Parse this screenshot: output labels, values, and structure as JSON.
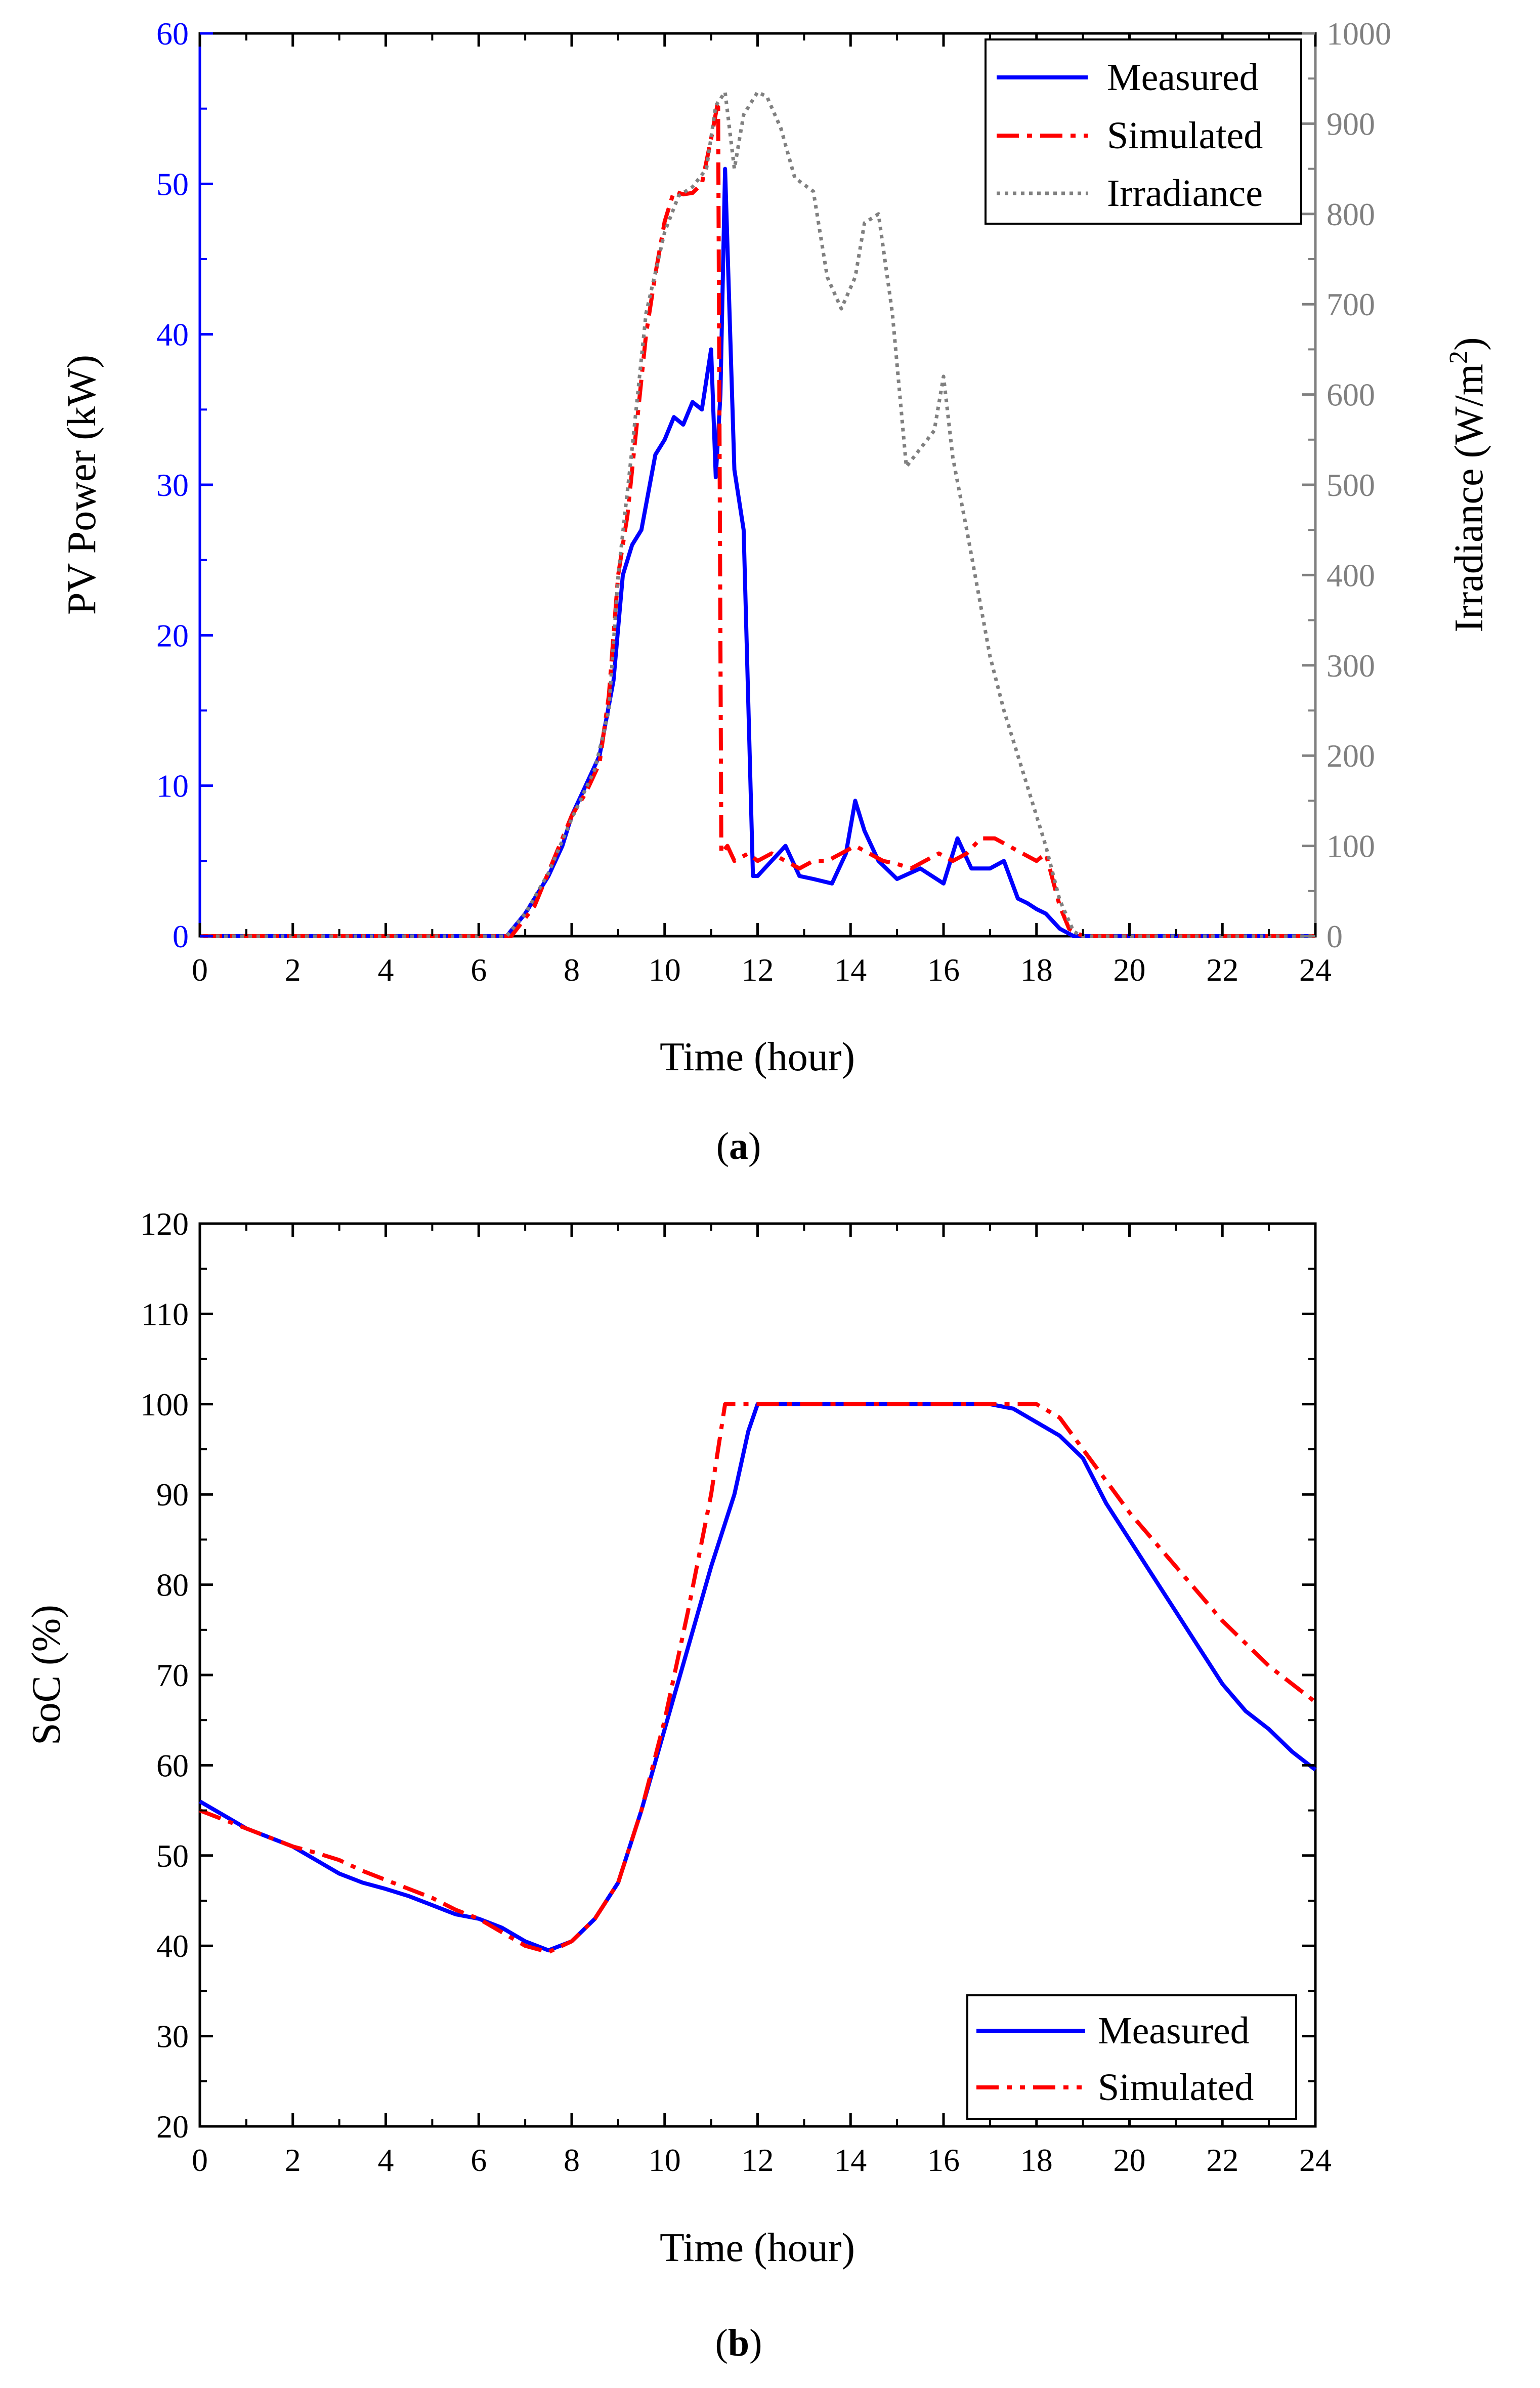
{
  "colors": {
    "measured": "#0000ff",
    "simulated": "#ff0000",
    "irradiance": "#808080",
    "left_axis_a": "#0000ff",
    "right_axis_a": "#808080",
    "axis": "#000000"
  },
  "chart_data": [
    {
      "type": "line",
      "title": "",
      "caption_open": "(",
      "caption_letter": "a",
      "caption_close": ")",
      "xlabel": "Time (hour)",
      "ylabel": "PV Power (kW)",
      "y2label_main": "Irradiance (W/m",
      "y2label_sup": "2",
      "y2label_close": ")",
      "xlim": [
        0,
        24
      ],
      "ylim": [
        0,
        60
      ],
      "y2lim": [
        0,
        1000
      ],
      "x_ticks": [
        0,
        2,
        4,
        6,
        8,
        10,
        12,
        14,
        16,
        18,
        20,
        22,
        24
      ],
      "x_tick_labels": [
        "0",
        "2",
        "4",
        "6",
        "8",
        "10",
        "12",
        "14",
        "16",
        "18",
        "20",
        "22",
        "24"
      ],
      "y_ticks": [
        0,
        10,
        20,
        30,
        40,
        50,
        60
      ],
      "y_tick_labels": [
        "0",
        "10",
        "20",
        "30",
        "40",
        "50",
        "60"
      ],
      "y2_ticks": [
        0,
        100,
        200,
        300,
        400,
        500,
        600,
        700,
        800,
        900,
        1000
      ],
      "y2_tick_labels": [
        "0",
        "100",
        "200",
        "300",
        "400",
        "500",
        "600",
        "700",
        "800",
        "900",
        "1000"
      ],
      "legend": {
        "position": "top-right",
        "entries": [
          "Measured",
          "Simulated",
          "Irradiance"
        ]
      },
      "series": [
        {
          "name": "Measured",
          "axis": "left",
          "style": "solid",
          "x": [
            0,
            6.6,
            7,
            7.5,
            7.8,
            8,
            8.3,
            8.6,
            8.9,
            9.1,
            9.3,
            9.5,
            9.8,
            10,
            10.2,
            10.4,
            10.6,
            10.8,
            11,
            11.1,
            11.2,
            11.3,
            11.5,
            11.7,
            11.9,
            12.0,
            12.3,
            12.6,
            12.9,
            13.2,
            13.6,
            13.9,
            14.1,
            14.3,
            14.6,
            15,
            15.5,
            16,
            16.3,
            16.6,
            17,
            17.3,
            17.6,
            17.8,
            18,
            18.2,
            18.5,
            18.8,
            19,
            24
          ],
          "values": [
            0,
            0,
            1.5,
            4,
            6,
            8,
            10,
            12,
            17,
            24,
            26,
            27,
            32,
            33,
            34.5,
            34,
            35.5,
            35,
            39,
            30.5,
            36,
            51,
            31,
            27,
            4,
            4,
            5,
            6,
            4,
            3.8,
            3.5,
            5.5,
            9,
            7,
            5,
            3.8,
            4.5,
            3.5,
            6.5,
            4.5,
            4.5,
            5,
            2.5,
            2.2,
            1.8,
            1.5,
            0.5,
            0,
            0,
            0
          ]
        },
        {
          "name": "Simulated",
          "axis": "left",
          "style": "dashdot",
          "x": [
            0,
            6.7,
            7.2,
            7.6,
            8,
            8.3,
            8.6,
            8.8,
            9,
            9.2,
            9.4,
            9.6,
            9.8,
            10,
            10.2,
            10.4,
            10.6,
            10.8,
            11,
            11.15,
            11.22,
            11.35,
            11.5,
            11.8,
            12.0,
            12.3,
            12.6,
            12.9,
            13.2,
            13.5,
            13.8,
            14.1,
            14.4,
            14.7,
            15,
            15.3,
            15.6,
            15.9,
            16.2,
            16.5,
            16.8,
            17.1,
            17.4,
            17.7,
            18,
            18.2,
            18.5,
            18.7,
            19,
            24
          ],
          "values": [
            0,
            0,
            2,
            5,
            8,
            9.5,
            11.5,
            16,
            24,
            28,
            34,
            40,
            44,
            47.5,
            49.5,
            49.3,
            49.4,
            50,
            53,
            55.5,
            5.5,
            6,
            5,
            5.5,
            5,
            5.5,
            5,
            4.5,
            5,
            5,
            5.5,
            6,
            5.5,
            5,
            4.8,
            4.5,
            5,
            5.5,
            5,
            5.5,
            6.5,
            6.5,
            6,
            5.5,
            5,
            5.5,
            2,
            0.5,
            0,
            0
          ]
        },
        {
          "name": "Irradiance",
          "axis": "right",
          "style": "dotted",
          "x": [
            0,
            6.6,
            7,
            7.5,
            8,
            8.5,
            8.8,
            9,
            9.3,
            9.6,
            10,
            10.3,
            10.6,
            10.9,
            11.1,
            11.3,
            11.5,
            11.7,
            12,
            12.2,
            12.5,
            12.8,
            13.2,
            13.5,
            13.8,
            14.1,
            14.3,
            14.6,
            14.9,
            15.2,
            15.5,
            15.8,
            16,
            16.2,
            16.5,
            17,
            17.3,
            17.6,
            17.9,
            18.2,
            18.5,
            18.8,
            19,
            24
          ],
          "values": [
            0,
            0,
            25,
            70,
            130,
            185,
            250,
            400,
            540,
            690,
            780,
            820,
            830,
            850,
            920,
            935,
            850,
            910,
            935,
            930,
            895,
            840,
            825,
            730,
            695,
            730,
            790,
            800,
            690,
            520,
            540,
            560,
            620,
            530,
            450,
            310,
            250,
            200,
            150,
            100,
            40,
            5,
            0,
            0
          ]
        }
      ]
    },
    {
      "type": "line",
      "title": "",
      "caption_open": "(",
      "caption_letter": "b",
      "caption_close": ")",
      "xlabel": "Time (hour)",
      "ylabel": "SoC (%)",
      "xlim": [
        0,
        24
      ],
      "ylim": [
        20,
        120
      ],
      "x_ticks": [
        0,
        2,
        4,
        6,
        8,
        10,
        12,
        14,
        16,
        18,
        20,
        22,
        24
      ],
      "x_tick_labels": [
        "0",
        "2",
        "4",
        "6",
        "8",
        "10",
        "12",
        "14",
        "16",
        "18",
        "20",
        "22",
        "24"
      ],
      "y_ticks": [
        20,
        30,
        40,
        50,
        60,
        70,
        80,
        90,
        100,
        110,
        120
      ],
      "y_tick_labels": [
        "20",
        "30",
        "40",
        "50",
        "60",
        "70",
        "80",
        "90",
        "100",
        "110",
        "120"
      ],
      "legend": {
        "position": "bottom-right",
        "entries": [
          "Measured",
          "Simulated"
        ]
      },
      "series": [
        {
          "name": "Measured",
          "style": "solid",
          "x": [
            0,
            0.5,
            1,
            1.5,
            2,
            2.5,
            3,
            3.5,
            4,
            4.5,
            5,
            5.5,
            6,
            6.5,
            7,
            7.5,
            8,
            8.5,
            9,
            9.5,
            10,
            10.5,
            11,
            11.5,
            11.8,
            12,
            13,
            14,
            15,
            16,
            17,
            17.5,
            18,
            18.5,
            19,
            19.5,
            20,
            20.5,
            21,
            21.5,
            22,
            22.5,
            23,
            23.5,
            24
          ],
          "values": [
            56,
            54.5,
            53,
            52,
            51,
            49.5,
            48,
            47,
            46.3,
            45.5,
            44.5,
            43.5,
            43,
            42,
            40.5,
            39.5,
            40.5,
            43,
            47,
            55,
            64,
            73,
            82,
            90,
            97,
            100,
            100,
            100,
            100,
            100,
            100,
            99.5,
            98,
            96.5,
            94,
            89,
            85,
            81,
            77,
            73,
            69,
            66,
            64,
            61.5,
            59.5
          ]
        },
        {
          "name": "Simulated",
          "style": "dashdot",
          "x": [
            0,
            0.5,
            1,
            1.5,
            2,
            2.5,
            3,
            3.5,
            4,
            4.5,
            5,
            5.5,
            6,
            6.5,
            7,
            7.5,
            8,
            8.5,
            9,
            9.5,
            10,
            10.5,
            11,
            11.3,
            12,
            13,
            14,
            15,
            16,
            17,
            18,
            18.5,
            19,
            19.5,
            20,
            20.5,
            21,
            21.5,
            22,
            22.5,
            23,
            23.5,
            24
          ],
          "values": [
            55,
            54,
            53,
            52,
            51,
            50.3,
            49.5,
            48.3,
            47.3,
            46.3,
            45.3,
            44,
            43,
            41.5,
            40,
            39.3,
            40.5,
            43,
            47,
            55,
            65,
            77,
            90,
            100,
            100,
            100,
            100,
            100,
            100,
            100,
            100,
            98.5,
            95,
            91.5,
            88,
            85,
            82,
            79,
            76,
            73.5,
            71,
            69,
            67
          ]
        }
      ]
    }
  ]
}
